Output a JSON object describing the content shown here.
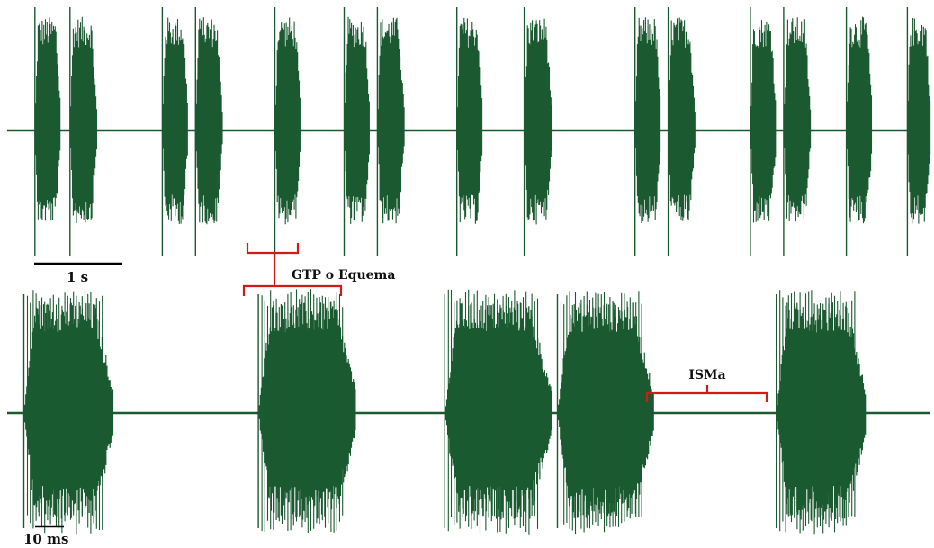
{
  "colors": {
    "trace": "#1b5a31",
    "annotation": "#d11a1a",
    "scalebar": "#000000",
    "background": "#ffffff"
  },
  "top_trace": {
    "bursts": [
      {
        "start": 0.03,
        "end": 0.058
      },
      {
        "start": 0.068,
        "end": 0.097
      },
      {
        "start": 0.168,
        "end": 0.196
      },
      {
        "start": 0.204,
        "end": 0.233
      },
      {
        "start": 0.29,
        "end": 0.318
      },
      {
        "start": 0.365,
        "end": 0.393
      },
      {
        "start": 0.401,
        "end": 0.43
      },
      {
        "start": 0.487,
        "end": 0.515
      },
      {
        "start": 0.56,
        "end": 0.59
      },
      {
        "start": 0.68,
        "end": 0.708
      },
      {
        "start": 0.716,
        "end": 0.745
      },
      {
        "start": 0.805,
        "end": 0.833
      },
      {
        "start": 0.841,
        "end": 0.87
      },
      {
        "start": 0.909,
        "end": 0.937
      },
      {
        "start": 0.975,
        "end": 1.0
      }
    ],
    "scale_bar_label": "1 s"
  },
  "bottom_trace": {
    "bursts": [
      {
        "start": 0.018,
        "end": 0.115
      },
      {
        "start": 0.272,
        "end": 0.378
      },
      {
        "start": 0.474,
        "end": 0.59
      },
      {
        "start": 0.596,
        "end": 0.7
      },
      {
        "start": 0.833,
        "end": 0.93
      }
    ],
    "scale_bar_label": "10 ms"
  },
  "annotations": {
    "gtp_label": "GTP o Equema",
    "isma_label": "ISMa"
  }
}
